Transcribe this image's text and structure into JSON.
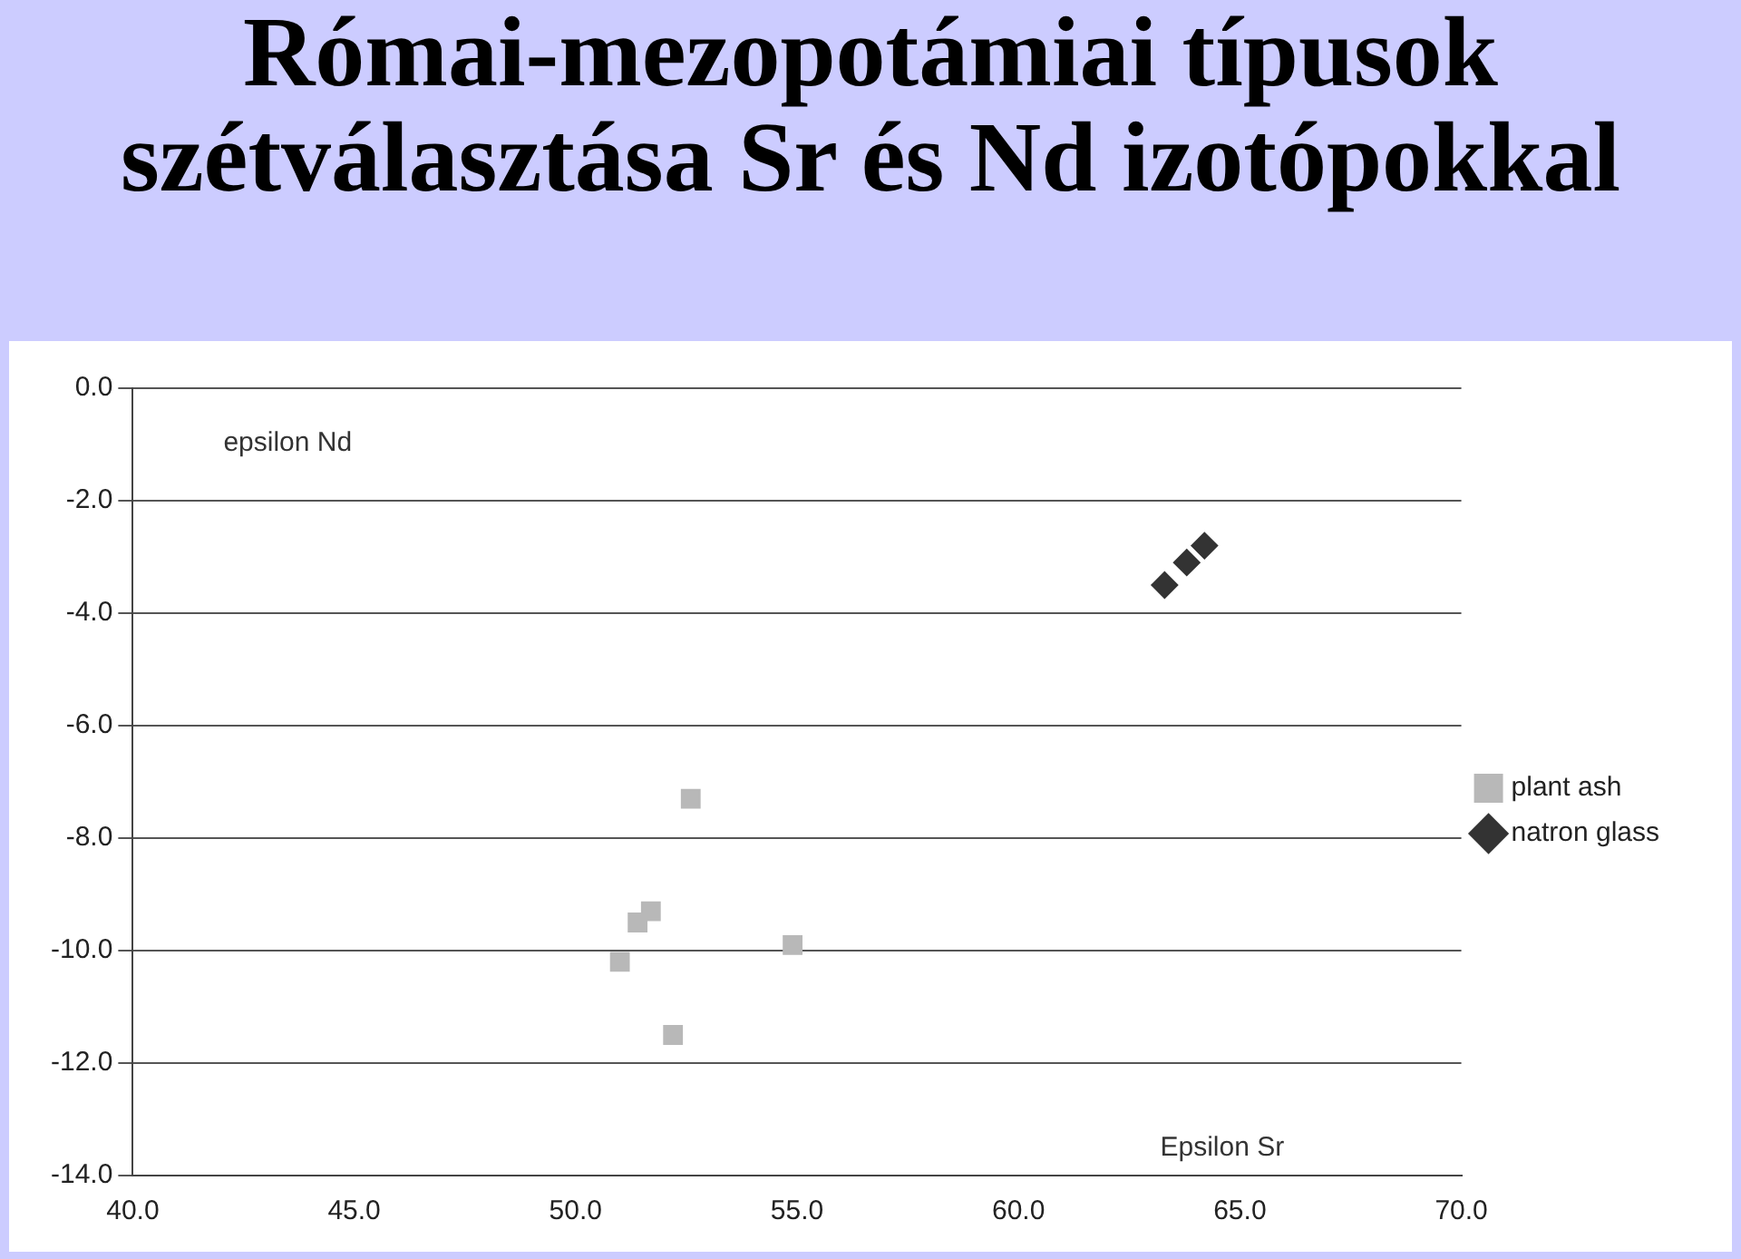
{
  "chart_data": {
    "type": "scatter",
    "title": "Római-mezopotámiai típusok szétválasztása Sr és Nd izotópokkal",
    "xlabel": "Epsilon Sr",
    "ylabel": "epsilon Nd",
    "xlim": [
      40,
      70
    ],
    "xticks": [
      {
        "value": 40,
        "label": "40.0"
      },
      {
        "value": 45,
        "label": "45.0"
      },
      {
        "value": 50,
        "label": "50.0"
      },
      {
        "value": 55,
        "label": "55.0"
      },
      {
        "value": 60,
        "label": "60.0"
      },
      {
        "value": 65,
        "label": "65.0"
      },
      {
        "value": 70,
        "label": "70.0"
      }
    ],
    "ylim": [
      -14,
      0
    ],
    "yticks": [
      {
        "value": 0,
        "label": "0.0"
      },
      {
        "value": -2,
        "label": "-2.0"
      },
      {
        "value": -4,
        "label": "-4.0"
      },
      {
        "value": -6,
        "label": "-6.0"
      },
      {
        "value": -8,
        "label": "-8.0"
      },
      {
        "value": -10,
        "label": "-10.0"
      },
      {
        "value": -12,
        "label": "-12.0"
      },
      {
        "value": -14,
        "label": "-14.0"
      }
    ],
    "grid": "y",
    "legend": "right",
    "series": [
      {
        "name": "plant ash",
        "color": "#b8b8b8",
        "marker": "square",
        "x": [
          52.6,
          51.7,
          51.4,
          51.0,
          54.9,
          52.2
        ],
        "values": [
          -7.3,
          -9.3,
          -9.5,
          -10.2,
          -9.9,
          -11.5
        ]
      },
      {
        "name": "natron glass",
        "color": "#333333",
        "marker": "diamond",
        "x": [
          63.3,
          63.8,
          64.2
        ],
        "values": [
          -3.5,
          -3.1,
          -2.8
        ]
      }
    ]
  }
}
